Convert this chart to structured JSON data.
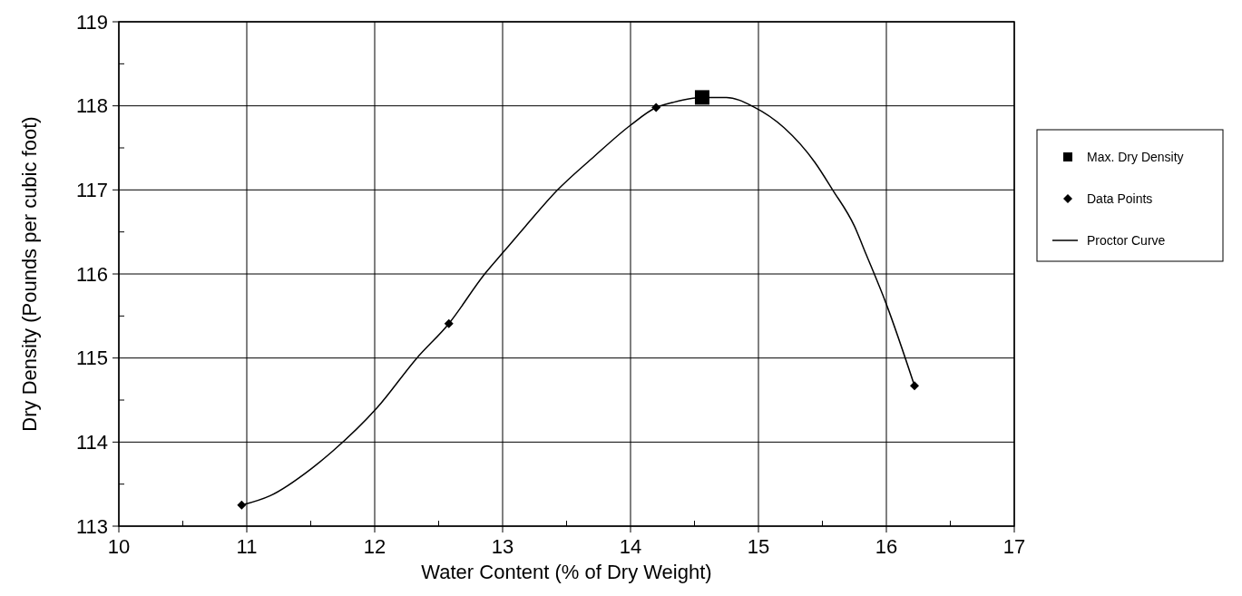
{
  "chart_data": {
    "type": "scatter",
    "xlabel": "Water Content (% of Dry Weight)",
    "ylabel": "Dry Density (Pounds per cubic foot)",
    "xlim": [
      10,
      17
    ],
    "ylim": [
      113,
      119
    ],
    "xticks": [
      10,
      {
        "value": 10.5,
        "label": null
      },
      11,
      {
        "value": 11.5,
        "label": null
      },
      12,
      {
        "value": 12.5,
        "label": null
      },
      13,
      {
        "value": 13.5,
        "label": null
      },
      14,
      {
        "value": 14.5,
        "label": null
      },
      15,
      {
        "value": 15.5,
        "label": null
      },
      16,
      {
        "value": 16.5,
        "label": null
      },
      17
    ],
    "yticks": [
      113,
      {
        "value": 113.5,
        "label": null
      },
      114,
      {
        "value": 114.5,
        "label": null
      },
      115,
      {
        "value": 115.5,
        "label": null
      },
      116,
      {
        "value": 116.5,
        "label": null
      },
      117,
      {
        "value": 117.5,
        "label": null
      },
      118,
      {
        "value": 118.5,
        "label": null
      },
      119
    ],
    "grid": true,
    "legend": "right",
    "series": [
      {
        "name": "Max. Dry Density",
        "marker": "square",
        "color": "#000000",
        "x": [
          14.56
        ],
        "values": [
          118.1
        ]
      },
      {
        "name": "Data Points",
        "marker": "diamond",
        "color": "#000000",
        "x": [
          10.96,
          12.58,
          14.2,
          16.22
        ],
        "values": [
          113.25,
          115.41,
          117.98,
          114.67
        ]
      },
      {
        "name": "Proctor Curve",
        "type": "line",
        "marker": "none",
        "line_style": "solid",
        "color": "#000000",
        "x": [
          10.96,
          11.18,
          11.51,
          11.67,
          12.02,
          12.33,
          12.58,
          12.86,
          13.0,
          13.18,
          13.43,
          13.71,
          14.0,
          14.2,
          14.33,
          14.56,
          14.75,
          14.96,
          15.2,
          15.44,
          15.58,
          15.75,
          15.84,
          16.0,
          16.22
        ],
        "values": [
          113.25,
          113.36,
          113.69,
          113.89,
          114.41,
          115.0,
          115.41,
          116.0,
          116.25,
          116.57,
          117.0,
          117.39,
          117.77,
          117.98,
          118.04,
          118.1,
          118.1,
          117.99,
          117.74,
          117.33,
          117.0,
          116.57,
          116.24,
          115.64,
          114.67
        ]
      }
    ]
  }
}
